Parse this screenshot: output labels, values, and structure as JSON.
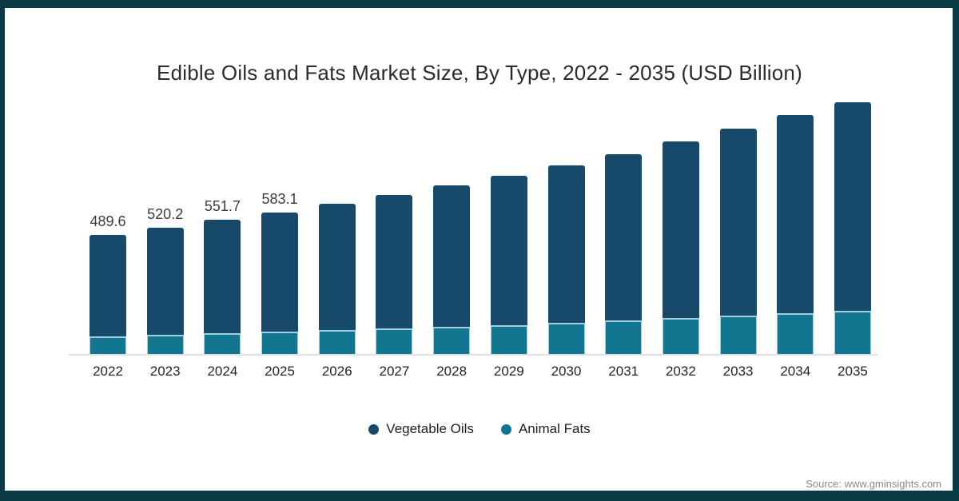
{
  "title": "Edible Oils and Fats Market Size, By Type, 2022 - 2035 (USD Billion)",
  "source": "Source: www.gminsights.com",
  "colors": {
    "vegetable_oils": "#17496b",
    "animal_fats": "#137691",
    "teal_segment_stroke": "#a3cedd",
    "frame": "#093a46",
    "axis_line": "#dde1e6"
  },
  "legend": {
    "items": [
      {
        "label": "Vegetable Oils",
        "color": "#17496b"
      },
      {
        "label": "Animal Fats",
        "color": "#137691"
      }
    ]
  },
  "chart_data": {
    "type": "bar",
    "stacked": true,
    "title": "Edible Oils and Fats Market Size, By Type, 2022 - 2035 (USD Billion)",
    "xlabel": "",
    "ylabel": "USD Billion",
    "y_axis_visible": false,
    "grid": false,
    "legend_position": "bottom",
    "ylim": [
      0,
      1100
    ],
    "categories": [
      "2022",
      "2023",
      "2024",
      "2025",
      "2026",
      "2027",
      "2028",
      "2029",
      "2030",
      "2031",
      "2032",
      "2033",
      "2034",
      "2035"
    ],
    "series": [
      {
        "name": "Vegetable Oils",
        "color": "#17496b",
        "values": [
          417.0,
          441.6,
          466.7,
          491.1,
          520.0,
          549.0,
          580.0,
          614.0,
          649.0,
          686.0,
          727.0,
          768.0,
          815.0,
          857.0
        ]
      },
      {
        "name": "Animal Fats",
        "color": "#137691",
        "values": [
          72.6,
          78.6,
          85.0,
          92.0,
          97.0,
          105.0,
          112.0,
          119.0,
          128.0,
          137.0,
          147.0,
          158.0,
          169.0,
          178.0
        ]
      }
    ],
    "totals": [
      489.6,
      520.2,
      551.7,
      583.1,
      617.0,
      654.0,
      692.0,
      733.0,
      777.0,
      823.0,
      874.0,
      926.0,
      984.0,
      1035.0
    ],
    "total_labels": [
      "489.6",
      "520.2",
      "551.7",
      "583.1"
    ]
  }
}
